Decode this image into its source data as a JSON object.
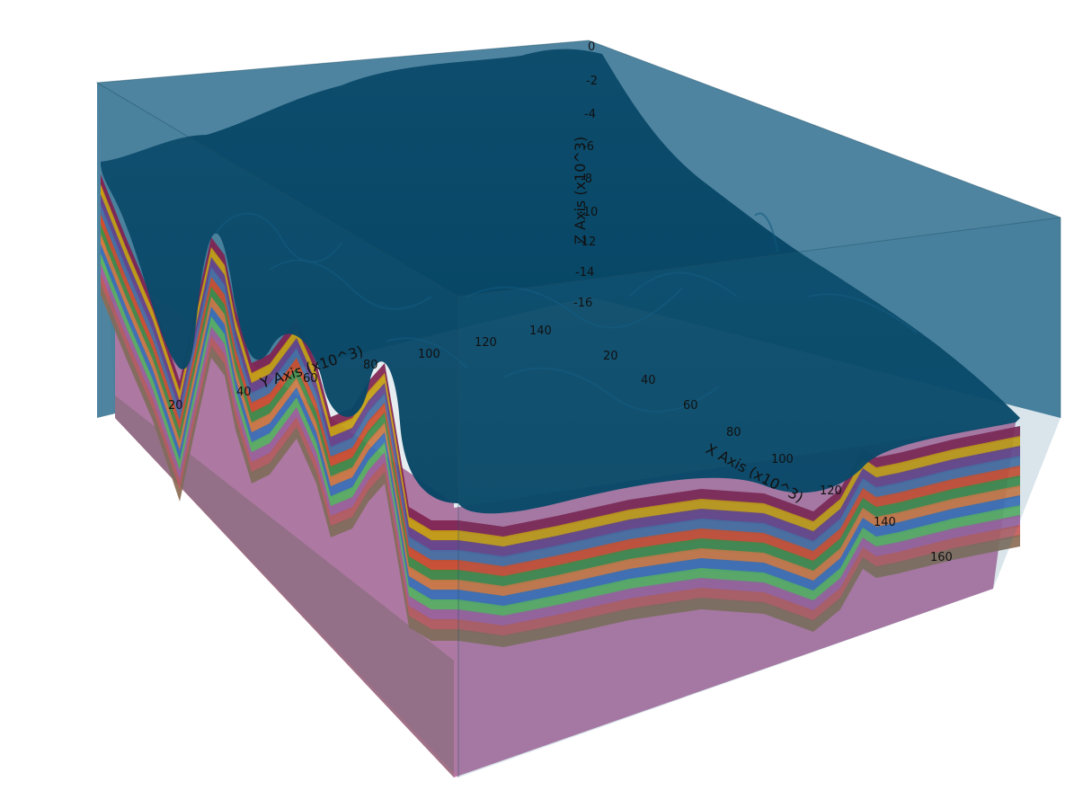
{
  "chart_data": {
    "type": "3d-layered-surface",
    "axes": {
      "x": {
        "title": "X Axis (x10^3)",
        "ticks": [
          "20",
          "40",
          "60",
          "80",
          "100",
          "120",
          "140",
          "160"
        ]
      },
      "y": {
        "title": "Y Axis (x10^3)",
        "ticks": [
          "20",
          "40",
          "60",
          "80",
          "100",
          "120",
          "140"
        ]
      },
      "z": {
        "title": "Z Axis (x10^3)",
        "ticks": [
          "0",
          "-2",
          "-4",
          "-6",
          "-8",
          "-10",
          "-12",
          "-14",
          "-16"
        ]
      }
    },
    "layer_colors": [
      "#003f5f",
      "#8b1a4a",
      "#d9a400",
      "#6b3d8a",
      "#4a6fa5",
      "#e04a22",
      "#3f8f3f",
      "#e07a3a",
      "#3b6fbd",
      "#5cb85c",
      "#a85f9e",
      "#c45a5a",
      "#8b6d55"
    ],
    "basement_color": "#bf7aa6",
    "box_color": "#2f6f8f"
  }
}
